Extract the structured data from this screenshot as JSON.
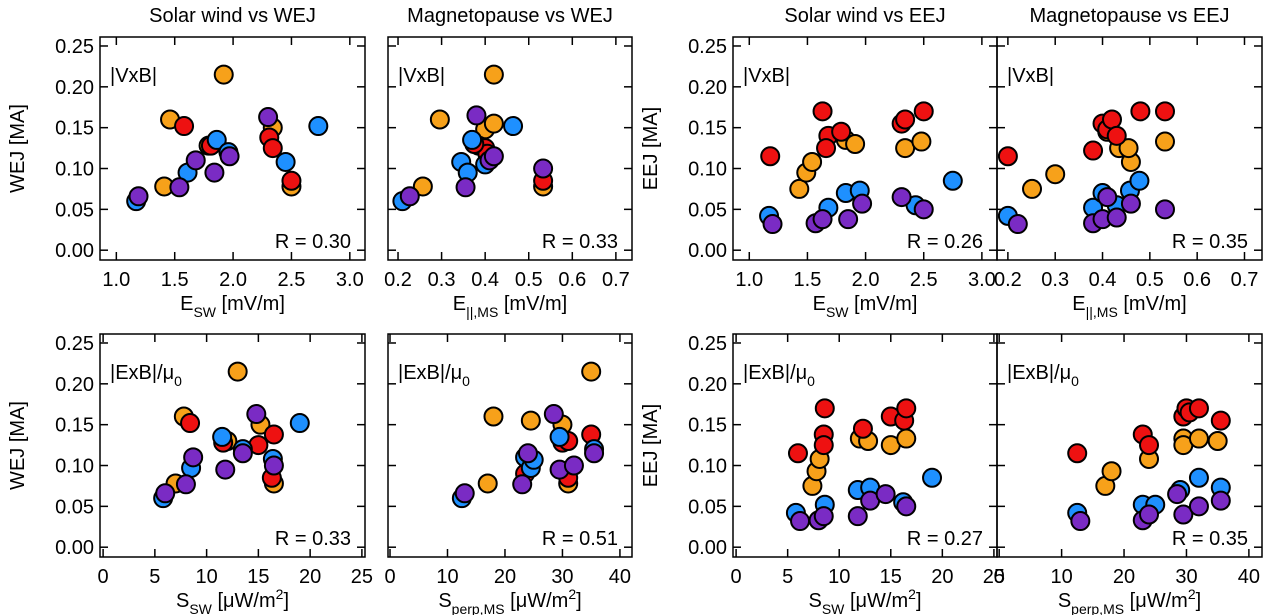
{
  "chart_data": [
    {
      "type": "scatter",
      "title": "Solar wind vs WEJ",
      "ylabel": "WEJ [MA]",
      "xlabel": [
        {
          "text": "E"
        },
        {
          "text": "SW",
          "shift": "sub"
        },
        {
          "text": " [mV/m]"
        }
      ],
      "annotation": [
        {
          "text": "|VxB|"
        }
      ],
      "r_label": "R = 0.30",
      "xlim": [
        0.86,
        3.13
      ],
      "ylim": [
        -0.012,
        0.261
      ],
      "xticks": [
        {
          "value": 1,
          "label": "1.0"
        },
        1.5,
        {
          "value": 2,
          "label": "2.0"
        },
        2.5,
        {
          "value": 3,
          "label": "3.0"
        }
      ],
      "yticks": [
        {
          "value": 0,
          "label": "0.00"
        },
        0.05,
        {
          "value": 0.1,
          "label": "0.10"
        },
        0.15,
        {
          "value": 0.2,
          "label": "0.20"
        },
        0.25
      ],
      "series": [
        {
          "color": "#F7A11A",
          "x": [
            1.41,
            1.46,
            1.92,
            2.34,
            2.5,
            1.79
          ],
          "y": [
            0.078,
            0.16,
            0.215,
            0.15,
            0.078,
            0.128
          ]
        },
        {
          "color": "#EE1111",
          "x": [
            1.58,
            1.81,
            2.31,
            2.34,
            2.5
          ],
          "y": [
            0.152,
            0.128,
            0.138,
            0.125,
            0.085
          ]
        },
        {
          "color": "#1E90FF",
          "x": [
            1.17,
            1.61,
            1.86,
            1.96,
            2.45,
            2.73
          ],
          "y": [
            0.06,
            0.095,
            0.135,
            0.12,
            0.108,
            0.152
          ]
        },
        {
          "color": "#7A2BC4",
          "x": [
            1.19,
            1.54,
            1.68,
            1.84,
            1.97,
            2.3
          ],
          "y": [
            0.066,
            0.077,
            0.11,
            0.095,
            0.115,
            0.163
          ]
        }
      ]
    },
    {
      "type": "scatter",
      "title": "Magnetopause vs WEJ",
      "xlabel": [
        {
          "text": "E"
        },
        {
          "text": "||,MS",
          "shift": "sub"
        },
        {
          "text": " [mV/m]"
        }
      ],
      "annotation": [
        {
          "text": "|VxB|"
        }
      ],
      "r_label": "R = 0.33",
      "xlim": [
        0.177,
        0.737
      ],
      "ylim": [
        -0.012,
        0.261
      ],
      "xticks": [
        0.2,
        0.3,
        0.4,
        0.5,
        0.6,
        0.7
      ],
      "yticks": [
        0,
        0.05,
        0.1,
        0.15,
        0.2,
        0.25
      ],
      "series": [
        {
          "color": "#F7A11A",
          "x": [
            0.257,
            0.296,
            0.42,
            0.4,
            0.533,
            0.42
          ],
          "y": [
            0.078,
            0.16,
            0.215,
            0.148,
            0.078,
            0.155
          ]
        },
        {
          "color": "#EE1111",
          "x": [
            0.385,
            0.4,
            0.405,
            0.533,
            0.375
          ],
          "y": [
            0.128,
            0.125,
            0.118,
            0.085,
            0.13
          ]
        },
        {
          "color": "#1E90FF",
          "x": [
            0.21,
            0.345,
            0.36,
            0.37,
            0.464,
            0.4
          ],
          "y": [
            0.06,
            0.108,
            0.095,
            0.135,
            0.152,
            0.105
          ]
        },
        {
          "color": "#7A2BC4",
          "x": [
            0.227,
            0.355,
            0.38,
            0.41,
            0.42,
            0.533
          ],
          "y": [
            0.066,
            0.077,
            0.165,
            0.11,
            0.115,
            0.1
          ]
        }
      ]
    },
    {
      "type": "scatter",
      "title": "Solar wind vs EEJ",
      "ylabel": "EEJ [MA]",
      "xlabel": [
        {
          "text": "E"
        },
        {
          "text": "SW",
          "shift": "sub"
        },
        {
          "text": " [mV/m]"
        }
      ],
      "annotation": [
        {
          "text": "|VxB|"
        }
      ],
      "r_label": "R = 0.26",
      "xlim": [
        0.86,
        3.13
      ],
      "ylim": [
        -0.012,
        0.261
      ],
      "xticks": [
        {
          "value": 1,
          "label": "1.0"
        },
        1.5,
        {
          "value": 2,
          "label": "2.0"
        },
        2.5,
        {
          "value": 3,
          "label": "3.0"
        }
      ],
      "yticks": [
        {
          "value": 0,
          "label": "0.00"
        },
        0.05,
        {
          "value": 0.1,
          "label": "0.10"
        },
        0.15,
        {
          "value": 0.2,
          "label": "0.20"
        },
        0.25
      ],
      "series": [
        {
          "color": "#F7A11A",
          "x": [
            1.43,
            1.49,
            1.54,
            1.83,
            1.91,
            2.34,
            2.48
          ],
          "y": [
            0.075,
            0.095,
            0.108,
            0.135,
            0.13,
            0.125,
            0.133
          ]
        },
        {
          "color": "#EE1111",
          "x": [
            1.18,
            1.63,
            1.68,
            1.79,
            2.31,
            2.34,
            2.5,
            1.66
          ],
          "y": [
            0.115,
            0.17,
            0.14,
            0.145,
            0.155,
            0.16,
            0.17,
            0.125
          ]
        },
        {
          "color": "#1E90FF",
          "x": [
            1.17,
            1.68,
            1.83,
            1.95,
            2.43,
            2.75
          ],
          "y": [
            0.042,
            0.052,
            0.07,
            0.073,
            0.055,
            0.085
          ]
        },
        {
          "color": "#7A2BC4",
          "x": [
            1.2,
            1.57,
            1.63,
            1.85,
            1.97,
            2.31,
            2.5
          ],
          "y": [
            0.032,
            0.033,
            0.038,
            0.038,
            0.057,
            0.065,
            0.05
          ]
        }
      ]
    },
    {
      "type": "scatter",
      "title": "Magnetopause vs EEJ",
      "xlabel": [
        {
          "text": "E"
        },
        {
          "text": "||,MS",
          "shift": "sub"
        },
        {
          "text": " [mV/m]"
        }
      ],
      "annotation": [
        {
          "text": "|VxB|"
        }
      ],
      "r_label": "R = 0.35",
      "xlim": [
        0.177,
        0.737
      ],
      "ylim": [
        -0.012,
        0.261
      ],
      "xticks": [
        0.2,
        0.3,
        0.4,
        0.5,
        0.6,
        0.7
      ],
      "yticks": [
        0,
        0.05,
        0.1,
        0.15,
        0.2,
        0.25
      ],
      "series": [
        {
          "color": "#F7A11A",
          "x": [
            0.251,
            0.3,
            0.435,
            0.46,
            0.455,
            0.532,
            0.41
          ],
          "y": [
            0.075,
            0.093,
            0.125,
            0.108,
            0.125,
            0.133,
            0.145
          ]
        },
        {
          "color": "#EE1111",
          "x": [
            0.2,
            0.38,
            0.4,
            0.41,
            0.42,
            0.43,
            0.48,
            0.532
          ],
          "y": [
            0.115,
            0.122,
            0.155,
            0.148,
            0.16,
            0.14,
            0.17,
            0.17
          ]
        },
        {
          "color": "#1E90FF",
          "x": [
            0.2,
            0.38,
            0.4,
            0.43,
            0.458,
            0.478
          ],
          "y": [
            0.042,
            0.052,
            0.07,
            0.055,
            0.073,
            0.085
          ]
        },
        {
          "color": "#7A2BC4",
          "x": [
            0.221,
            0.38,
            0.4,
            0.43,
            0.46,
            0.532,
            0.41
          ],
          "y": [
            0.032,
            0.033,
            0.038,
            0.04,
            0.057,
            0.05,
            0.065
          ]
        }
      ]
    },
    {
      "type": "scatter",
      "ylabel": "WEJ [MA]",
      "xlabel": [
        {
          "text": "S"
        },
        {
          "text": "SW",
          "shift": "sub"
        },
        {
          "text": " [μW/m"
        },
        {
          "text": "2",
          "shift": "sup"
        },
        {
          "text": "]"
        }
      ],
      "annotation": [
        {
          "text": "|ExB|/μ"
        },
        {
          "text": "0",
          "shift": "sub"
        }
      ],
      "r_label": "R = 0.33",
      "xlim": [
        -0.3,
        25.3
      ],
      "ylim": [
        -0.012,
        0.261
      ],
      "xticks": [
        0,
        5,
        10,
        15,
        20,
        25
      ],
      "yticks": [
        {
          "value": 0,
          "label": "0.00"
        },
        0.05,
        {
          "value": 0.1,
          "label": "0.10"
        },
        0.15,
        {
          "value": 0.2,
          "label": "0.20"
        },
        0.25
      ],
      "series": [
        {
          "color": "#F7A11A",
          "x": [
            7,
            7.8,
            13,
            15.2,
            16.5,
            12
          ],
          "y": [
            0.078,
            0.16,
            0.215,
            0.15,
            0.078,
            0.13
          ]
        },
        {
          "color": "#EE1111",
          "x": [
            8.4,
            11.6,
            15,
            16.5,
            16.3
          ],
          "y": [
            0.152,
            0.128,
            0.125,
            0.138,
            0.085
          ]
        },
        {
          "color": "#1E90FF",
          "x": [
            5.8,
            8.5,
            11.5,
            13.5,
            16.4,
            19
          ],
          "y": [
            0.06,
            0.097,
            0.135,
            0.12,
            0.108,
            0.152
          ]
        },
        {
          "color": "#7A2BC4",
          "x": [
            6,
            8,
            8.7,
            11.8,
            13.5,
            14.8,
            16.5
          ],
          "y": [
            0.066,
            0.077,
            0.11,
            0.095,
            0.115,
            0.163,
            0.1
          ]
        }
      ]
    },
    {
      "type": "scatter",
      "xlabel": [
        {
          "text": "S"
        },
        {
          "text": "perp,MS",
          "shift": "sub"
        },
        {
          "text": " [μW/m"
        },
        {
          "text": "2",
          "shift": "sup"
        },
        {
          "text": "]"
        }
      ],
      "annotation": [
        {
          "text": "|ExB|/μ"
        },
        {
          "text": "0",
          "shift": "sub"
        }
      ],
      "r_label": "R = 0.51",
      "xlim": [
        -0.35,
        42.1
      ],
      "ylim": [
        -0.012,
        0.261
      ],
      "xticks": [
        0,
        10,
        20,
        30,
        40
      ],
      "yticks": [
        0,
        0.05,
        0.1,
        0.15,
        0.2,
        0.25
      ],
      "series": [
        {
          "color": "#F7A11A",
          "x": [
            17,
            18,
            24.5,
            30,
            35,
            31
          ],
          "y": [
            0.078,
            0.16,
            0.155,
            0.15,
            0.215,
            0.078
          ]
        },
        {
          "color": "#EE1111",
          "x": [
            23.5,
            30,
            31,
            35,
            31
          ],
          "y": [
            0.09,
            0.128,
            0.13,
            0.138,
            0.085
          ]
        },
        {
          "color": "#1E90FF",
          "x": [
            12.5,
            23.5,
            24.5,
            29.5,
            35.5,
            25
          ],
          "y": [
            0.06,
            0.11,
            0.097,
            0.135,
            0.12,
            0.107
          ]
        },
        {
          "color": "#7A2BC4",
          "x": [
            13,
            23,
            24,
            28.5,
            29.5,
            35.5,
            32
          ],
          "y": [
            0.066,
            0.077,
            0.115,
            0.163,
            0.095,
            0.115,
            0.1
          ]
        }
      ]
    },
    {
      "type": "scatter",
      "ylabel": "EEJ [MA]",
      "xlabel": [
        {
          "text": "S"
        },
        {
          "text": "SW",
          "shift": "sub"
        },
        {
          "text": " [μW/m"
        },
        {
          "text": "2",
          "shift": "sup"
        },
        {
          "text": "]"
        }
      ],
      "annotation": [
        {
          "text": "|ExB|/μ"
        },
        {
          "text": "0",
          "shift": "sub"
        }
      ],
      "r_label": "R = 0.27",
      "xlim": [
        -0.3,
        25.3
      ],
      "ylim": [
        -0.012,
        0.261
      ],
      "xticks": [
        0,
        5,
        10,
        15,
        20,
        25
      ],
      "yticks": [
        {
          "value": 0,
          "label": "0.00"
        },
        0.05,
        {
          "value": 0.1,
          "label": "0.10"
        },
        0.15,
        {
          "value": 0.2,
          "label": "0.20"
        },
        0.25
      ],
      "series": [
        {
          "color": "#F7A11A",
          "x": [
            7.4,
            7.8,
            8.1,
            12,
            12.8,
            15,
            16.5
          ],
          "y": [
            0.075,
            0.093,
            0.108,
            0.133,
            0.13,
            0.125,
            0.133
          ]
        },
        {
          "color": "#EE1111",
          "x": [
            6,
            8.6,
            8.5,
            8.5,
            12.3,
            15,
            16.3,
            16.5
          ],
          "y": [
            0.115,
            0.17,
            0.138,
            0.125,
            0.145,
            0.16,
            0.155,
            0.17
          ]
        },
        {
          "color": "#1E90FF",
          "x": [
            5.8,
            8.6,
            11.8,
            13,
            16.2,
            19
          ],
          "y": [
            0.042,
            0.052,
            0.07,
            0.073,
            0.055,
            0.085
          ]
        },
        {
          "color": "#7A2BC4",
          "x": [
            6.2,
            8,
            8.5,
            11.8,
            13,
            14.5,
            16.5
          ],
          "y": [
            0.032,
            0.033,
            0.038,
            0.038,
            0.057,
            0.065,
            0.05
          ]
        }
      ]
    },
    {
      "type": "scatter",
      "xlabel": [
        {
          "text": "S"
        },
        {
          "text": "perp,MS",
          "shift": "sub"
        },
        {
          "text": " [μW/m"
        },
        {
          "text": "2",
          "shift": "sup"
        },
        {
          "text": "]"
        }
      ],
      "annotation": [
        {
          "text": "|ExB|/μ"
        },
        {
          "text": "0",
          "shift": "sub"
        }
      ],
      "r_label": "R = 0.35",
      "xlim": [
        -0.35,
        42.1
      ],
      "ylim": [
        -0.012,
        0.261
      ],
      "xticks": [
        0,
        10,
        20,
        30,
        40
      ],
      "yticks": [
        0,
        0.05,
        0.1,
        0.15,
        0.2,
        0.25
      ],
      "series": [
        {
          "color": "#F7A11A",
          "x": [
            17,
            18,
            24,
            29.5,
            29.5,
            32,
            35
          ],
          "y": [
            0.075,
            0.093,
            0.108,
            0.133,
            0.125,
            0.133,
            0.13
          ]
        },
        {
          "color": "#EE1111",
          "x": [
            12.5,
            23,
            24,
            29.5,
            30,
            30.5,
            32,
            35.5
          ],
          "y": [
            0.115,
            0.138,
            0.125,
            0.16,
            0.17,
            0.165,
            0.17,
            0.155
          ]
        },
        {
          "color": "#1E90FF",
          "x": [
            12.5,
            23,
            25,
            29,
            32,
            35.5
          ],
          "y": [
            0.042,
            0.052,
            0.052,
            0.07,
            0.085,
            0.073
          ]
        },
        {
          "color": "#7A2BC4",
          "x": [
            13,
            23,
            24,
            28.5,
            29.5,
            32,
            35.5
          ],
          "y": [
            0.032,
            0.033,
            0.04,
            0.065,
            0.04,
            0.05,
            0.057
          ]
        }
      ]
    }
  ]
}
